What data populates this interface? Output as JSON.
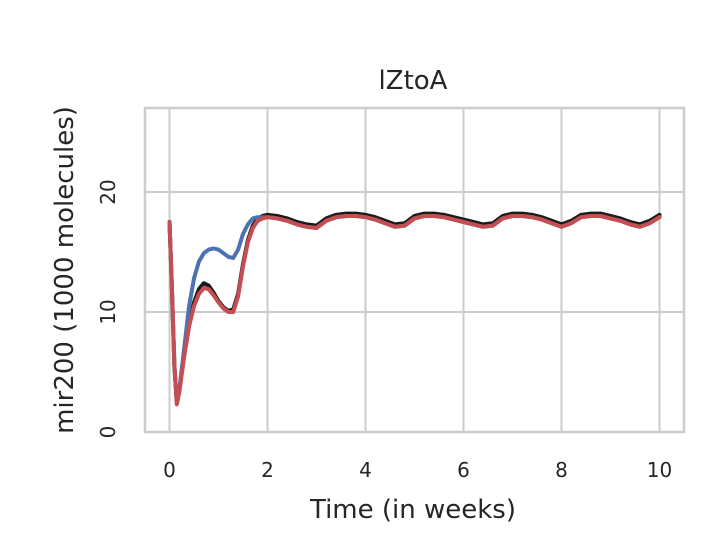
{
  "chart_data": {
    "type": "line",
    "title": "lZtoA",
    "xlabel": "Time (in weeks)",
    "ylabel": "mir200 (1000 molecules)",
    "xlim": [
      -0.5,
      10.5
    ],
    "ylim": [
      0,
      27
    ],
    "xticks": [
      0,
      2,
      4,
      6,
      8,
      10
    ],
    "yticks": [
      0,
      10,
      20
    ],
    "grid": true,
    "series": [
      {
        "color": "#1a1a1a",
        "x": [
          0,
          0.05,
          0.1,
          0.15,
          0.2,
          0.3,
          0.4,
          0.5,
          0.6,
          0.7,
          0.8,
          0.9,
          1.0,
          1.1,
          1.2,
          1.3,
          1.4,
          1.5,
          1.6,
          1.7,
          1.8,
          1.9,
          2.0,
          2.2,
          2.4,
          2.6,
          2.8,
          3.0,
          3.2,
          3.4,
          3.6,
          3.8,
          4.0,
          4.2,
          4.4,
          4.6,
          4.8,
          5.0,
          5.2,
          5.4,
          5.6,
          5.8,
          6.0,
          6.2,
          6.4,
          6.6,
          6.8,
          7.0,
          7.2,
          7.4,
          7.6,
          7.8,
          8.0,
          8.2,
          8.4,
          8.6,
          8.8,
          9.0,
          9.2,
          9.4,
          9.6,
          9.8,
          10.0
        ],
        "y": [
          17.5,
          12.0,
          5.5,
          2.5,
          3.5,
          6.5,
          9.0,
          10.8,
          11.9,
          12.4,
          12.2,
          11.6,
          10.9,
          10.4,
          10.1,
          10.2,
          11.5,
          14.0,
          16.0,
          17.2,
          17.8,
          18.0,
          18.1,
          18.0,
          17.8,
          17.5,
          17.3,
          17.2,
          17.8,
          18.1,
          18.2,
          18.2,
          18.1,
          17.9,
          17.6,
          17.3,
          17.4,
          18.0,
          18.2,
          18.2,
          18.1,
          17.9,
          17.7,
          17.5,
          17.3,
          17.4,
          18.0,
          18.2,
          18.2,
          18.1,
          17.9,
          17.6,
          17.3,
          17.6,
          18.1,
          18.2,
          18.2,
          18.0,
          17.8,
          17.5,
          17.3,
          17.6,
          18.1
        ]
      },
      {
        "color": "#4c72b0",
        "x": [
          0,
          0.05,
          0.1,
          0.15,
          0.2,
          0.3,
          0.4,
          0.5,
          0.6,
          0.7,
          0.8,
          0.9,
          1.0,
          1.1,
          1.2,
          1.3,
          1.4,
          1.5,
          1.6,
          1.7,
          1.8,
          1.9,
          2.0,
          2.2,
          2.4,
          2.6,
          2.8,
          3.0,
          3.2,
          3.4,
          3.6,
          3.8,
          4.0,
          4.2,
          4.4,
          4.6,
          4.8,
          5.0,
          5.2,
          5.4,
          5.6,
          5.8,
          6.0,
          6.2,
          6.4,
          6.6,
          6.8,
          7.0,
          7.2,
          7.4,
          7.6,
          7.8,
          8.0,
          8.2,
          8.4,
          8.6,
          8.8,
          9.0,
          9.2,
          9.4,
          9.6,
          9.8,
          10.0
        ],
        "y": [
          17.5,
          12.0,
          5.5,
          2.5,
          3.5,
          7.0,
          10.5,
          12.8,
          14.2,
          14.9,
          15.2,
          15.3,
          15.2,
          14.9,
          14.6,
          14.5,
          15.2,
          16.5,
          17.3,
          17.8,
          17.9,
          17.9,
          17.9,
          17.8,
          17.6,
          17.3,
          17.1,
          17.0,
          17.6,
          17.9,
          18.0,
          18.0,
          17.9,
          17.7,
          17.4,
          17.1,
          17.2,
          17.8,
          18.0,
          18.0,
          17.9,
          17.7,
          17.5,
          17.3,
          17.1,
          17.2,
          17.8,
          18.0,
          18.0,
          17.9,
          17.7,
          17.4,
          17.1,
          17.4,
          17.9,
          18.0,
          18.0,
          17.8,
          17.6,
          17.3,
          17.1,
          17.4,
          17.9
        ]
      },
      {
        "color": "#c44e52",
        "x": [
          0,
          0.05,
          0.1,
          0.15,
          0.2,
          0.3,
          0.4,
          0.5,
          0.6,
          0.7,
          0.8,
          0.9,
          1.0,
          1.1,
          1.2,
          1.3,
          1.4,
          1.5,
          1.6,
          1.7,
          1.8,
          1.9,
          2.0,
          2.2,
          2.4,
          2.6,
          2.8,
          3.0,
          3.2,
          3.4,
          3.6,
          3.8,
          4.0,
          4.2,
          4.4,
          4.6,
          4.8,
          5.0,
          5.2,
          5.4,
          5.6,
          5.8,
          6.0,
          6.2,
          6.4,
          6.6,
          6.8,
          7.0,
          7.2,
          7.4,
          7.6,
          7.8,
          8.0,
          8.2,
          8.4,
          8.6,
          8.8,
          9.0,
          9.2,
          9.4,
          9.6,
          9.8,
          10.0
        ],
        "y": [
          17.5,
          12.0,
          5.5,
          2.3,
          3.3,
          6.3,
          8.8,
          10.5,
          11.5,
          12.0,
          11.9,
          11.4,
          10.8,
          10.3,
          10.0,
          10.0,
          11.3,
          13.8,
          15.8,
          17.0,
          17.6,
          17.8,
          17.9,
          17.8,
          17.6,
          17.3,
          17.1,
          17.0,
          17.6,
          17.9,
          18.0,
          18.0,
          17.9,
          17.7,
          17.4,
          17.1,
          17.2,
          17.8,
          18.0,
          18.0,
          17.9,
          17.7,
          17.5,
          17.3,
          17.1,
          17.2,
          17.8,
          18.0,
          18.0,
          17.9,
          17.7,
          17.4,
          17.1,
          17.4,
          17.9,
          18.0,
          18.0,
          17.8,
          17.6,
          17.3,
          17.1,
          17.4,
          17.9
        ]
      }
    ]
  }
}
